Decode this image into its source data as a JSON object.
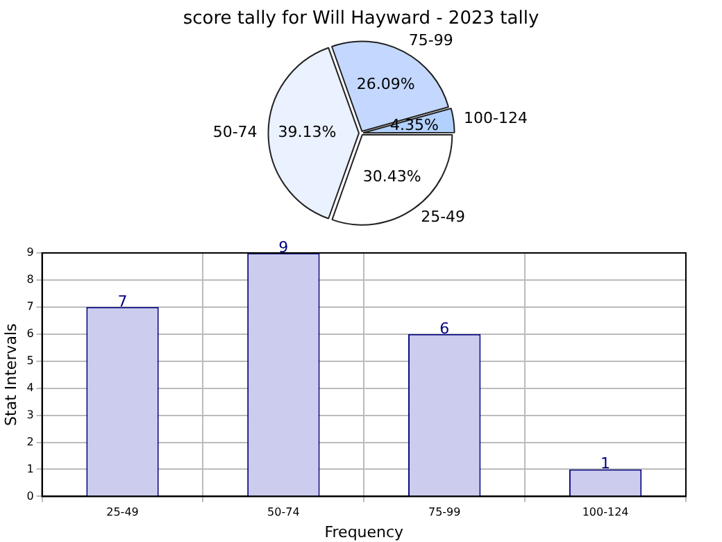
{
  "chart_data": [
    {
      "type": "pie",
      "title": "score tally for Will Hayward - 2023 tally",
      "categories": [
        "25-49",
        "50-74",
        "75-99",
        "100-124"
      ],
      "values": [
        30.43,
        39.13,
        26.09,
        4.35
      ],
      "colors": [
        "#ffffff",
        "#eaf1ff",
        "#c4d8ff",
        "#b3d1ff"
      ],
      "value_labels": [
        "30.43%",
        "39.13%",
        "26.09%",
        "4.35%"
      ],
      "legend": false
    },
    {
      "type": "bar",
      "categories": [
        "25-49",
        "50-74",
        "75-99",
        "100-124"
      ],
      "values": [
        7,
        9,
        6,
        1
      ],
      "color": "#ccccee",
      "xlabel": "Frequency",
      "ylabel": "Stat Intervals",
      "ylim": [
        0,
        9
      ],
      "yticks": [
        0,
        1,
        2,
        3,
        4,
        5,
        6,
        7,
        8,
        9
      ],
      "grid": true,
      "data_labels": true,
      "legend": false
    }
  ]
}
